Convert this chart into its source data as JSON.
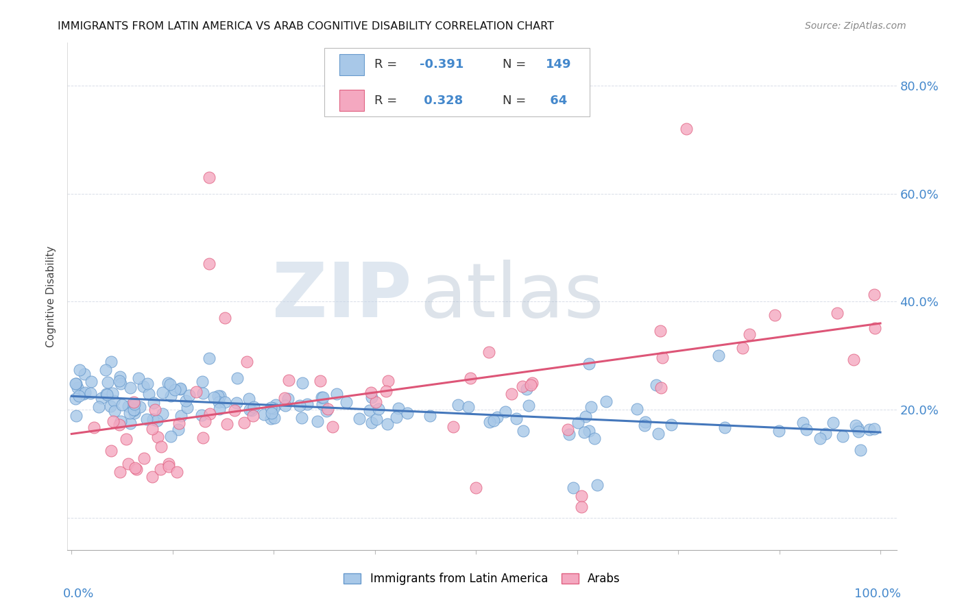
{
  "title": "IMMIGRANTS FROM LATIN AMERICA VS ARAB COGNITIVE DISABILITY CORRELATION CHART",
  "source": "Source: ZipAtlas.com",
  "ylabel": "Cognitive Disability",
  "color_blue": "#a8c8e8",
  "color_pink": "#f4a8c0",
  "color_blue_edge": "#6699cc",
  "color_pink_edge": "#e06080",
  "color_blue_line": "#4477bb",
  "color_pink_line": "#dd5577",
  "color_axis_label": "#4488cc",
  "color_grid": "#d8dde8",
  "color_title": "#111111",
  "blue_line_x0": 0.0,
  "blue_line_x1": 1.0,
  "blue_line_y0": 0.225,
  "blue_line_y1": 0.158,
  "pink_line_x0": 0.0,
  "pink_line_x1": 1.0,
  "pink_line_y0": 0.155,
  "pink_line_y1": 0.36,
  "xmin": 0.0,
  "xmax": 1.0,
  "ymin": -0.06,
  "ymax": 0.88,
  "ytick_positions": [
    0.0,
    0.2,
    0.4,
    0.6,
    0.8
  ],
  "ytick_labels": [
    "",
    "20.0%",
    "40.0%",
    "60.0%",
    "80.0%"
  ]
}
